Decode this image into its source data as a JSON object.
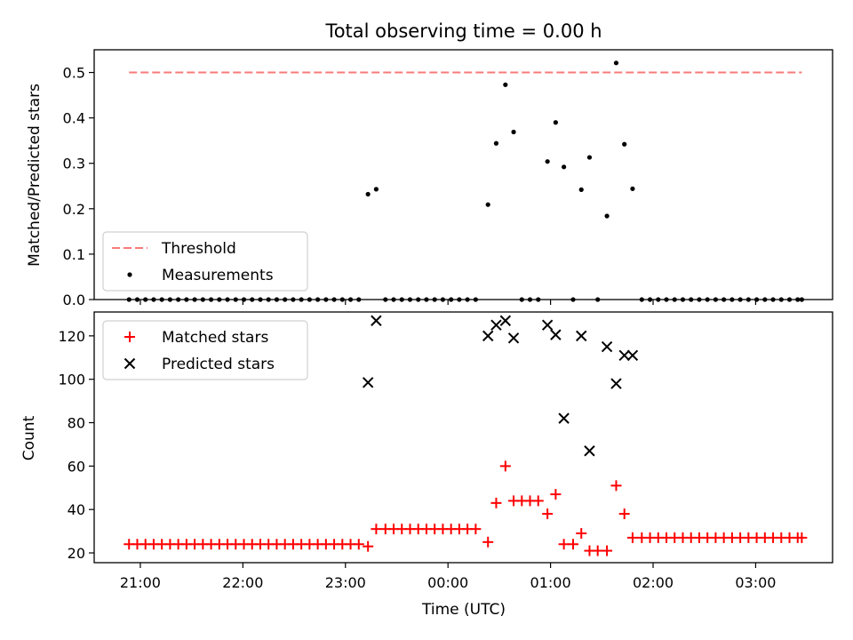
{
  "chart_data": [
    {
      "type": "scatter",
      "title": "Total observing time = 0.00 h",
      "ylabel": "Matched/Predicted stars",
      "ylim": [
        0,
        0.55
      ],
      "yticks": [
        0.0,
        0.1,
        0.2,
        0.3,
        0.4,
        0.5
      ],
      "ytick_labels": [
        "0.0",
        "0.1",
        "0.2",
        "0.3",
        "0.4",
        "0.5"
      ],
      "xlim": [
        20.55,
        27.75
      ],
      "threshold": {
        "name": "Threshold",
        "value": 0.5,
        "x_start": 20.89,
        "x_end": 27.45,
        "color": "#f87a7a"
      },
      "legend": {
        "location": "lower-left",
        "entries": [
          "Threshold",
          "Measurements"
        ]
      },
      "series": [
        {
          "name": "Measurements",
          "color": "#000000",
          "marker": "dot",
          "points": [
            [
              20.89,
              0
            ],
            [
              20.97,
              0
            ],
            [
              21.05,
              0
            ],
            [
              21.13,
              0
            ],
            [
              21.21,
              0
            ],
            [
              21.29,
              0
            ],
            [
              21.37,
              0
            ],
            [
              21.45,
              0
            ],
            [
              21.53,
              0
            ],
            [
              21.61,
              0
            ],
            [
              21.69,
              0
            ],
            [
              21.77,
              0
            ],
            [
              21.85,
              0
            ],
            [
              21.93,
              0
            ],
            [
              22.01,
              0
            ],
            [
              22.09,
              0
            ],
            [
              22.17,
              0
            ],
            [
              22.25,
              0
            ],
            [
              22.33,
              0
            ],
            [
              22.41,
              0
            ],
            [
              22.49,
              0
            ],
            [
              22.57,
              0
            ],
            [
              22.65,
              0
            ],
            [
              22.73,
              0
            ],
            [
              22.81,
              0
            ],
            [
              22.89,
              0
            ],
            [
              22.97,
              0
            ],
            [
              23.05,
              0
            ],
            [
              23.13,
              0
            ],
            [
              23.22,
              0.232
            ],
            [
              23.3,
              0.243
            ],
            [
              23.39,
              0
            ],
            [
              23.47,
              0
            ],
            [
              23.55,
              0
            ],
            [
              23.63,
              0
            ],
            [
              23.71,
              0
            ],
            [
              23.79,
              0
            ],
            [
              23.87,
              0
            ],
            [
              23.95,
              0
            ],
            [
              24.03,
              0
            ],
            [
              24.11,
              0
            ],
            [
              24.19,
              0
            ],
            [
              24.27,
              0
            ],
            [
              24.39,
              0.209
            ],
            [
              24.47,
              0.344
            ],
            [
              24.56,
              0.473
            ],
            [
              24.64,
              0.369
            ],
            [
              24.72,
              0
            ],
            [
              24.8,
              0
            ],
            [
              24.88,
              0
            ],
            [
              24.97,
              0.304
            ],
            [
              25.05,
              0.39
            ],
            [
              25.13,
              0.292
            ],
            [
              25.22,
              0
            ],
            [
              25.3,
              0.242
            ],
            [
              25.38,
              0.313
            ],
            [
              25.46,
              0
            ],
            [
              25.55,
              0.184
            ],
            [
              25.64,
              0.521
            ],
            [
              25.72,
              0.342
            ],
            [
              25.8,
              0.244
            ],
            [
              25.89,
              0
            ],
            [
              25.97,
              0
            ],
            [
              26.05,
              0
            ],
            [
              26.13,
              0
            ],
            [
              26.21,
              0
            ],
            [
              26.29,
              0
            ],
            [
              26.37,
              0
            ],
            [
              26.45,
              0
            ],
            [
              26.53,
              0
            ],
            [
              26.61,
              0
            ],
            [
              26.69,
              0
            ],
            [
              26.77,
              0
            ],
            [
              26.85,
              0
            ],
            [
              26.93,
              0
            ],
            [
              27.01,
              0
            ],
            [
              27.09,
              0
            ],
            [
              27.17,
              0
            ],
            [
              27.25,
              0
            ],
            [
              27.33,
              0
            ],
            [
              27.41,
              0
            ],
            [
              27.45,
              0
            ]
          ]
        }
      ]
    },
    {
      "type": "scatter",
      "xlabel": "Time (UTC)",
      "ylabel": "Count",
      "ylim": [
        15.5,
        131
      ],
      "yticks": [
        20,
        40,
        60,
        80,
        100,
        120
      ],
      "ytick_labels": [
        "20",
        "40",
        "60",
        "80",
        "100",
        "120"
      ],
      "xlim": [
        20.55,
        27.75
      ],
      "xticks": [
        21,
        22,
        23,
        24,
        25,
        26,
        27
      ],
      "xtick_labels": [
        "21:00",
        "22:00",
        "23:00",
        "00:00",
        "01:00",
        "02:00",
        "03:00"
      ],
      "legend": {
        "location": "upper-left",
        "entries": [
          "Matched stars",
          "Predicted stars"
        ]
      },
      "series": [
        {
          "name": "Matched stars",
          "color": "#ff0000",
          "marker": "plus",
          "points": [
            [
              20.89,
              24
            ],
            [
              20.97,
              24
            ],
            [
              21.05,
              24
            ],
            [
              21.13,
              24
            ],
            [
              21.21,
              24
            ],
            [
              21.29,
              24
            ],
            [
              21.37,
              24
            ],
            [
              21.45,
              24
            ],
            [
              21.53,
              24
            ],
            [
              21.61,
              24
            ],
            [
              21.69,
              24
            ],
            [
              21.77,
              24
            ],
            [
              21.85,
              24
            ],
            [
              21.93,
              24
            ],
            [
              22.01,
              24
            ],
            [
              22.09,
              24
            ],
            [
              22.17,
              24
            ],
            [
              22.25,
              24
            ],
            [
              22.33,
              24
            ],
            [
              22.41,
              24
            ],
            [
              22.49,
              24
            ],
            [
              22.57,
              24
            ],
            [
              22.65,
              24
            ],
            [
              22.73,
              24
            ],
            [
              22.81,
              24
            ],
            [
              22.89,
              24
            ],
            [
              22.97,
              24
            ],
            [
              23.05,
              24
            ],
            [
              23.13,
              24
            ],
            [
              23.22,
              23
            ],
            [
              23.3,
              31
            ],
            [
              23.39,
              31
            ],
            [
              23.47,
              31
            ],
            [
              23.55,
              31
            ],
            [
              23.63,
              31
            ],
            [
              23.71,
              31
            ],
            [
              23.79,
              31
            ],
            [
              23.87,
              31
            ],
            [
              23.95,
              31
            ],
            [
              24.03,
              31
            ],
            [
              24.11,
              31
            ],
            [
              24.19,
              31
            ],
            [
              24.27,
              31
            ],
            [
              24.39,
              25
            ],
            [
              24.47,
              43
            ],
            [
              24.56,
              60
            ],
            [
              24.64,
              44
            ],
            [
              24.72,
              44
            ],
            [
              24.8,
              44
            ],
            [
              24.88,
              44
            ],
            [
              24.97,
              38
            ],
            [
              25.05,
              47
            ],
            [
              25.13,
              24
            ],
            [
              25.22,
              24
            ],
            [
              25.3,
              29
            ],
            [
              25.38,
              21
            ],
            [
              25.46,
              21
            ],
            [
              25.55,
              21
            ],
            [
              25.64,
              51
            ],
            [
              25.72,
              38
            ],
            [
              25.8,
              27
            ],
            [
              25.89,
              27
            ],
            [
              25.97,
              27
            ],
            [
              26.05,
              27
            ],
            [
              26.13,
              27
            ],
            [
              26.21,
              27
            ],
            [
              26.29,
              27
            ],
            [
              26.37,
              27
            ],
            [
              26.45,
              27
            ],
            [
              26.53,
              27
            ],
            [
              26.61,
              27
            ],
            [
              26.69,
              27
            ],
            [
              26.77,
              27
            ],
            [
              26.85,
              27
            ],
            [
              26.93,
              27
            ],
            [
              27.01,
              27
            ],
            [
              27.09,
              27
            ],
            [
              27.17,
              27
            ],
            [
              27.25,
              27
            ],
            [
              27.33,
              27
            ],
            [
              27.41,
              27
            ],
            [
              27.45,
              27
            ]
          ]
        },
        {
          "name": "Predicted stars",
          "color": "#000000",
          "marker": "x",
          "points": [
            [
              23.22,
              98.5
            ],
            [
              23.3,
              127
            ],
            [
              24.39,
              120
            ],
            [
              24.47,
              125
            ],
            [
              24.56,
              127
            ],
            [
              24.64,
              119
            ],
            [
              24.97,
              125
            ],
            [
              25.05,
              120.5
            ],
            [
              25.13,
              82
            ],
            [
              25.3,
              120
            ],
            [
              25.38,
              67
            ],
            [
              25.55,
              115
            ],
            [
              25.64,
              98
            ],
            [
              25.72,
              111
            ],
            [
              25.8,
              111
            ]
          ]
        }
      ]
    }
  ]
}
